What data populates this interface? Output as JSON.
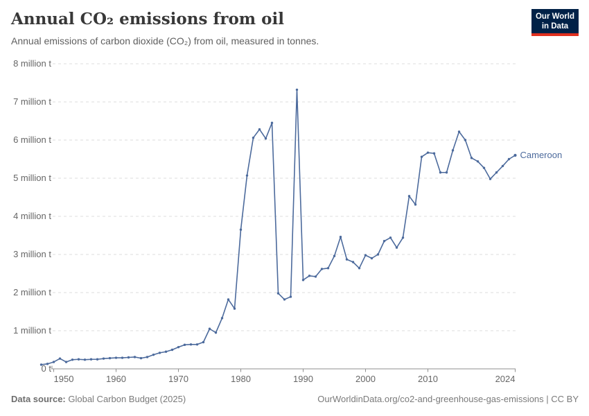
{
  "header": {
    "title": "Annual CO₂ emissions from oil",
    "subtitle": "Annual emissions of carbon dioxide (CO₂) from oil, measured in tonnes.",
    "logo": {
      "line1": "Our World",
      "line2": "in Data"
    }
  },
  "footer": {
    "source_label": "Data source:",
    "source_value": " Global Carbon Budget (2025)",
    "right_text": "OurWorldinData.org/co2-and-greenhouse-gas-emissions | CC BY"
  },
  "colors": {
    "line": "#4C6A9C",
    "logo_bg": "#002147",
    "logo_stripe": "#e0301f",
    "gridline": "#dcdcdc",
    "axis": "#8f8f8f",
    "tick_text": "#666666"
  },
  "chart_data": {
    "type": "line",
    "title": "Annual CO₂ emissions from oil",
    "subtitle": "Annual emissions of carbon dioxide (CO₂) from oil, measured in tonnes.",
    "unit": "million tonnes of CO₂",
    "grid": "horizontal dashed",
    "legend_position": "end-of-line label",
    "x_range": [
      1948,
      2024
    ],
    "x_step": 1,
    "ylim": [
      0,
      8
    ],
    "x_ticks": [
      1950,
      1960,
      1970,
      1980,
      1990,
      2000,
      2010,
      2024
    ],
    "y_ticks": [
      {
        "value": 0,
        "label": "0 t"
      },
      {
        "value": 1,
        "label": "1 million t"
      },
      {
        "value": 2,
        "label": "2 million t"
      },
      {
        "value": 3,
        "label": "3 million t"
      },
      {
        "value": 4,
        "label": "4 million t"
      },
      {
        "value": 5,
        "label": "5 million t"
      },
      {
        "value": 6,
        "label": "6 million t"
      },
      {
        "value": 7,
        "label": "7 million t"
      },
      {
        "value": 8,
        "label": "8 million t"
      }
    ],
    "series": [
      {
        "name": "Cameroon",
        "color": "#4C6A9C",
        "values": [
          0.11,
          0.13,
          0.18,
          0.27,
          0.18,
          0.24,
          0.25,
          0.24,
          0.25,
          0.25,
          0.27,
          0.28,
          0.29,
          0.29,
          0.3,
          0.31,
          0.28,
          0.31,
          0.37,
          0.42,
          0.45,
          0.5,
          0.57,
          0.63,
          0.64,
          0.64,
          0.7,
          1.05,
          0.95,
          1.33,
          1.82,
          1.58,
          3.65,
          5.07,
          6.06,
          6.28,
          6.04,
          6.45,
          1.98,
          1.82,
          1.89,
          7.32,
          2.33,
          2.44,
          2.42,
          2.62,
          2.64,
          2.96,
          3.46,
          2.87,
          2.8,
          2.64,
          2.98,
          2.9,
          3.0,
          3.35,
          3.44,
          3.18,
          3.44,
          4.53,
          4.31,
          5.56,
          5.67,
          5.65,
          5.15,
          5.15,
          5.73,
          6.22,
          6.0,
          5.53,
          5.44,
          5.27,
          4.98,
          5.15,
          5.32,
          5.5,
          5.6
        ]
      }
    ]
  }
}
